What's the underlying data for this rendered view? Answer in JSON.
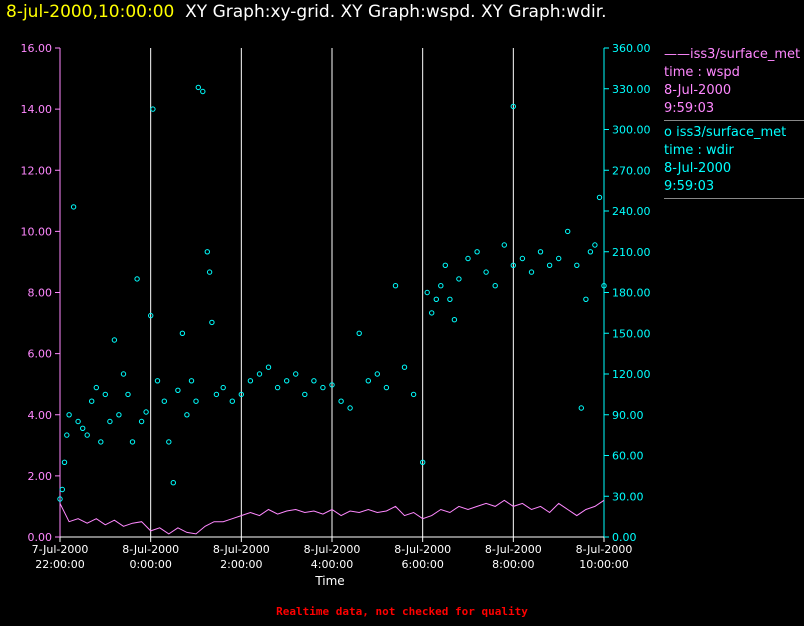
{
  "title": {
    "timestamp": "8-jul-2000,10:00:00",
    "graphs": "XY Graph:xy-grid.  XY Graph:wspd.  XY Graph:wdir."
  },
  "legend": [
    {
      "symbol": "——",
      "name": "iss3/surface_met",
      "var": "time : wspd",
      "date": "8-Jul-2000",
      "time": "9:59:03",
      "color": "#ff88ff"
    },
    {
      "symbol": "o",
      "name": "iss3/surface_met",
      "var": "time : wdir",
      "date": "8-Jul-2000",
      "time": "9:59:03",
      "color": "#00ffff"
    }
  ],
  "footer_note": "Realtime data, not checked for quality",
  "chart_data": {
    "type": "scatter",
    "xlabel": "Time",
    "x_ticks": [
      {
        "date": "7-Jul-2000",
        "time": "22:00:00"
      },
      {
        "date": "8-Jul-2000",
        "time": "0:00:00"
      },
      {
        "date": "8-Jul-2000",
        "time": "2:00:00"
      },
      {
        "date": "8-Jul-2000",
        "time": "4:00:00"
      },
      {
        "date": "8-Jul-2000",
        "time": "6:00:00"
      },
      {
        "date": "8-Jul-2000",
        "time": "8:00:00"
      },
      {
        "date": "8-Jul-2000",
        "time": "10:00:00"
      }
    ],
    "x_tick_hours": [
      -2,
      0,
      2,
      4,
      6,
      8,
      10
    ],
    "xlim": [
      -2,
      10
    ],
    "y_left": {
      "ticks": [
        "0.00",
        "2.00",
        "4.00",
        "6.00",
        "8.00",
        "10.00",
        "12.00",
        "14.00",
        "16.00"
      ],
      "lim": [
        0,
        16
      ],
      "color": "#ff88ff"
    },
    "y_right": {
      "ticks": [
        "0.00",
        "30.00",
        "60.00",
        "90.00",
        "120.00",
        "150.00",
        "180.00",
        "210.00",
        "240.00",
        "270.00",
        "300.00",
        "330.00",
        "360.00"
      ],
      "lim": [
        0,
        360
      ],
      "color": "#00ffff"
    },
    "grid": "vertical",
    "series": [
      {
        "name": "wspd",
        "style": "line",
        "axis": "left",
        "color": "#ff88ff",
        "points": [
          [
            -2.0,
            1.1
          ],
          [
            -1.8,
            0.5
          ],
          [
            -1.6,
            0.6
          ],
          [
            -1.4,
            0.45
          ],
          [
            -1.2,
            0.6
          ],
          [
            -1.0,
            0.4
          ],
          [
            -0.8,
            0.55
          ],
          [
            -0.6,
            0.35
          ],
          [
            -0.4,
            0.45
          ],
          [
            -0.2,
            0.5
          ],
          [
            0.0,
            0.2
          ],
          [
            0.2,
            0.3
          ],
          [
            0.4,
            0.1
          ],
          [
            0.6,
            0.3
          ],
          [
            0.8,
            0.15
          ],
          [
            1.0,
            0.1
          ],
          [
            1.2,
            0.35
          ],
          [
            1.4,
            0.5
          ],
          [
            1.6,
            0.5
          ],
          [
            1.8,
            0.6
          ],
          [
            2.0,
            0.7
          ],
          [
            2.2,
            0.8
          ],
          [
            2.4,
            0.7
          ],
          [
            2.6,
            0.9
          ],
          [
            2.8,
            0.75
          ],
          [
            3.0,
            0.85
          ],
          [
            3.2,
            0.9
          ],
          [
            3.4,
            0.8
          ],
          [
            3.6,
            0.85
          ],
          [
            3.8,
            0.75
          ],
          [
            4.0,
            0.9
          ],
          [
            4.2,
            0.7
          ],
          [
            4.4,
            0.85
          ],
          [
            4.6,
            0.8
          ],
          [
            4.8,
            0.9
          ],
          [
            5.0,
            0.8
          ],
          [
            5.2,
            0.85
          ],
          [
            5.4,
            1.0
          ],
          [
            5.6,
            0.7
          ],
          [
            5.8,
            0.8
          ],
          [
            6.0,
            0.6
          ],
          [
            6.2,
            0.7
          ],
          [
            6.4,
            0.9
          ],
          [
            6.6,
            0.8
          ],
          [
            6.8,
            1.0
          ],
          [
            7.0,
            0.9
          ],
          [
            7.2,
            1.0
          ],
          [
            7.4,
            1.1
          ],
          [
            7.6,
            1.0
          ],
          [
            7.8,
            1.2
          ],
          [
            8.0,
            1.0
          ],
          [
            8.2,
            1.1
          ],
          [
            8.4,
            0.9
          ],
          [
            8.6,
            1.0
          ],
          [
            8.8,
            0.8
          ],
          [
            9.0,
            1.1
          ],
          [
            9.2,
            0.9
          ],
          [
            9.4,
            0.7
          ],
          [
            9.6,
            0.9
          ],
          [
            9.8,
            1.0
          ],
          [
            10.0,
            1.2
          ]
        ]
      },
      {
        "name": "wdir",
        "style": "markers",
        "axis": "right",
        "color": "#00ffff",
        "points": [
          [
            -2.0,
            28
          ],
          [
            -1.95,
            35
          ],
          [
            -1.9,
            55
          ],
          [
            -1.85,
            75
          ],
          [
            -1.8,
            90
          ],
          [
            -1.7,
            243
          ],
          [
            -1.6,
            85
          ],
          [
            -1.5,
            80
          ],
          [
            -1.4,
            75
          ],
          [
            -1.3,
            100
          ],
          [
            -1.2,
            110
          ],
          [
            -1.1,
            70
          ],
          [
            -1.0,
            105
          ],
          [
            -0.9,
            85
          ],
          [
            -0.8,
            145
          ],
          [
            -0.7,
            90
          ],
          [
            -0.6,
            120
          ],
          [
            -0.5,
            105
          ],
          [
            -0.4,
            70
          ],
          [
            -0.3,
            190
          ],
          [
            -0.2,
            85
          ],
          [
            -0.1,
            92
          ],
          [
            0.0,
            163
          ],
          [
            0.05,
            315
          ],
          [
            0.15,
            115
          ],
          [
            0.3,
            100
          ],
          [
            0.4,
            70
          ],
          [
            0.5,
            40
          ],
          [
            0.6,
            108
          ],
          [
            0.7,
            150
          ],
          [
            0.8,
            90
          ],
          [
            0.9,
            115
          ],
          [
            1.0,
            100
          ],
          [
            1.05,
            331
          ],
          [
            1.15,
            328
          ],
          [
            1.25,
            210
          ],
          [
            1.3,
            195
          ],
          [
            1.35,
            158
          ],
          [
            1.45,
            105
          ],
          [
            1.6,
            110
          ],
          [
            1.8,
            100
          ],
          [
            2.0,
            105
          ],
          [
            2.2,
            115
          ],
          [
            2.4,
            120
          ],
          [
            2.6,
            125
          ],
          [
            2.8,
            110
          ],
          [
            3.0,
            115
          ],
          [
            3.2,
            120
          ],
          [
            3.4,
            105
          ],
          [
            3.6,
            115
          ],
          [
            3.8,
            110
          ],
          [
            4.0,
            112
          ],
          [
            4.2,
            100
          ],
          [
            4.4,
            95
          ],
          [
            4.6,
            150
          ],
          [
            4.8,
            115
          ],
          [
            5.0,
            120
          ],
          [
            5.2,
            110
          ],
          [
            5.4,
            185
          ],
          [
            5.6,
            125
          ],
          [
            5.8,
            105
          ],
          [
            6.0,
            55
          ],
          [
            6.1,
            180
          ],
          [
            6.2,
            165
          ],
          [
            6.3,
            175
          ],
          [
            6.4,
            185
          ],
          [
            6.5,
            200
          ],
          [
            6.6,
            175
          ],
          [
            6.7,
            160
          ],
          [
            6.8,
            190
          ],
          [
            7.0,
            205
          ],
          [
            7.2,
            210
          ],
          [
            7.4,
            195
          ],
          [
            7.6,
            185
          ],
          [
            7.8,
            215
          ],
          [
            8.0,
            200
          ],
          [
            8.0,
            317
          ],
          [
            8.2,
            205
          ],
          [
            8.4,
            195
          ],
          [
            8.6,
            210
          ],
          [
            8.8,
            200
          ],
          [
            9.0,
            205
          ],
          [
            9.2,
            225
          ],
          [
            9.4,
            200
          ],
          [
            9.5,
            95
          ],
          [
            9.6,
            175
          ],
          [
            9.7,
            210
          ],
          [
            9.8,
            215
          ],
          [
            9.9,
            250
          ],
          [
            10.0,
            185
          ]
        ]
      }
    ]
  }
}
